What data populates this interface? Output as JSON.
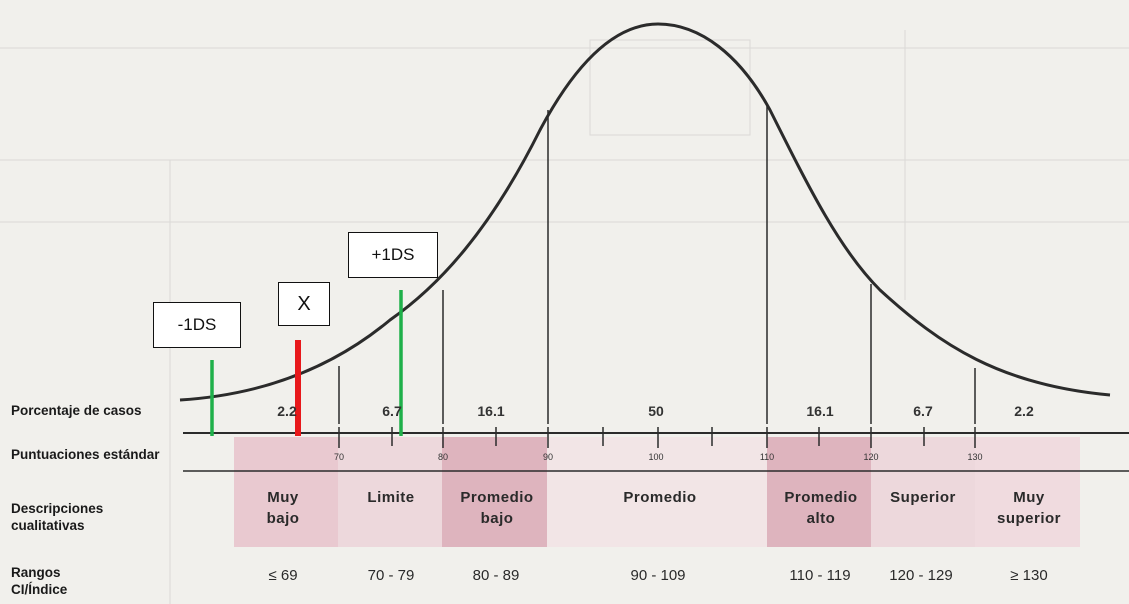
{
  "markers": {
    "minus_1ds": {
      "label": "-1DS",
      "color": "#1fb04a"
    },
    "x_mark": {
      "label": "X",
      "color": "#e8181b"
    },
    "plus_1ds": {
      "label": "+1DS",
      "color": "#1fb04a"
    }
  },
  "row_labels": {
    "porcentaje": "Porcentaje de casos",
    "puntuaciones": "Puntuaciones estándar",
    "descripciones_1": "Descripciones",
    "descripciones_2": "cualitativas",
    "rangos_1": "Rangos",
    "rangos_2": "CI/Índice"
  },
  "percentages": [
    "2.2",
    "6.7",
    "16.1",
    "50",
    "16.1",
    "6.7",
    "2.2"
  ],
  "standard_scores": [
    "70",
    "80",
    "90",
    "100",
    "110",
    "120",
    "130"
  ],
  "descriptions": [
    {
      "line1": "Muy",
      "line2": "bajo"
    },
    {
      "line1": "Limite",
      "line2": ""
    },
    {
      "line1": "Promedio",
      "line2": "bajo"
    },
    {
      "line1": "Promedio",
      "line2": ""
    },
    {
      "line1": "Promedio",
      "line2": "alto"
    },
    {
      "line1": "Superior",
      "line2": ""
    },
    {
      "line1": "Muy",
      "line2": "superior"
    }
  ],
  "ranges": [
    "≤ 69",
    "70 - 79",
    "80 - 89",
    "90 - 109",
    "110 - 119",
    "120 - 129",
    "≥ 130"
  ],
  "colors": {
    "curve": "#2b2b2b",
    "band_pink": "#e7c2cb",
    "band_dark_pink": "#dba9b6",
    "marker_green": "#1fb04a",
    "marker_red": "#e8181b"
  }
}
